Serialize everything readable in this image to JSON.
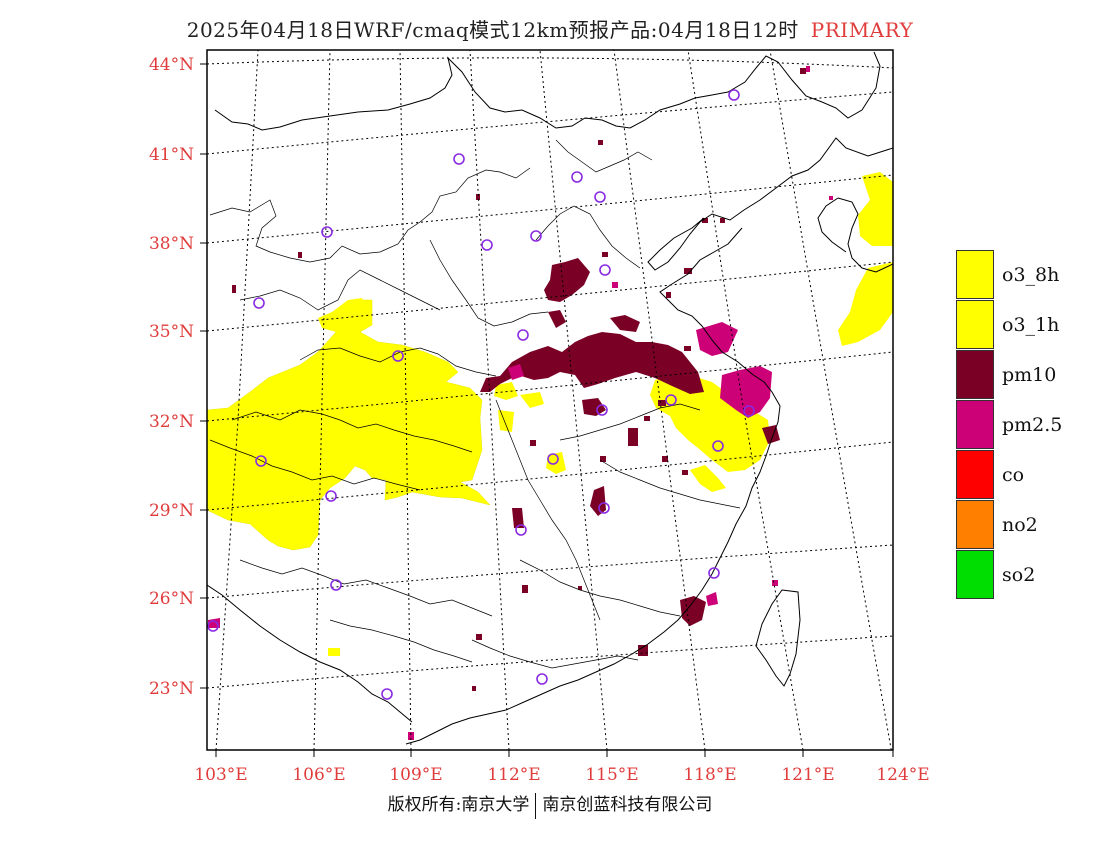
{
  "title": {
    "main": "2025年04月18日WRF/cmaq模式12km预报产品:04月18日12时",
    "tag": "PRIMARY"
  },
  "map": {
    "lon_labels": [
      "103°E",
      "106°E",
      "109°E",
      "112°E",
      "115°E",
      "118°E",
      "121°E",
      "124°E"
    ],
    "lat_labels": [
      "44°N",
      "41°N",
      "38°N",
      "35°N",
      "32°N",
      "29°N",
      "26°N",
      "23°N"
    ],
    "label_color": "#e03c3c",
    "pollutant_colors": {
      "o3": "#ffff00",
      "pm10": "#7a0026",
      "pm25": "#cc0077"
    },
    "station_marker_color": "#8a2be2"
  },
  "legend": [
    {
      "label": "o3_8h",
      "color": "#ffff00"
    },
    {
      "label": "o3_1h",
      "color": "#ffff00"
    },
    {
      "label": "pm10",
      "color": "#7a0026"
    },
    {
      "label": "pm2.5",
      "color": "#cc0077"
    },
    {
      "label": "co",
      "color": "#ff0000"
    },
    {
      "label": "no2",
      "color": "#ff7f00"
    },
    {
      "label": "so2",
      "color": "#00dd00"
    }
  ],
  "footer": {
    "left": "版权所有:南京大学",
    "right": "南京创蓝科技有限公司"
  }
}
